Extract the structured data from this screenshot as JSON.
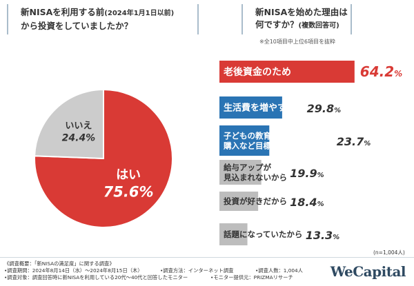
{
  "left_question": {
    "line1": "新NISAを利用する前",
    "line1_small": "(2024年1月1日以前)",
    "line2": "から投資をしていましたか？"
  },
  "right_question": {
    "line1": "新NISAを始めた理由は",
    "line2": "何ですか？",
    "line2_small": "(複数回答可)",
    "note": "※全10項目中上位6項目を抜粋"
  },
  "sample_size": "(n=1,004人)",
  "footer": {
    "survey_title": "《調査概要：「新NISAの満足度」に関する調査》",
    "period": "•調査期間：2024年8月14日（水）〜2024年8月15日（木）",
    "method": "•調査方法：インターネット調査",
    "count": "•調査人数：1,004人",
    "target": "•調査対象：調査回答時に新NISAを利用している20代〜40代と回答したモニター",
    "provider": "•モニター提供元：PRIZMAリサーチ",
    "brand": "WeCapital"
  },
  "chart_data": [
    {
      "type": "pie",
      "slices": [
        {
          "label": "はい",
          "value": 75.6,
          "display": "75.6%",
          "color": "#d93a35"
        },
        {
          "label": "いいえ",
          "value": 24.4,
          "display": "24.4%",
          "color": "#cccccc"
        }
      ]
    },
    {
      "type": "bar",
      "orientation": "horizontal",
      "categories": [
        "老後資金のため",
        "生活費を増やすため",
        "子どもの教育資金・マイホーム購入など目標金額達成のため",
        "給与アップが見込まれないから",
        "投資が好きだから",
        "話題になっていたから"
      ],
      "category_lines": [
        [
          "老後資金のため"
        ],
        [
          "生活費を増やすため"
        ],
        [
          "子どもの教育資金・マイホーム",
          "購入など目標金額達成のため"
        ],
        [
          "給与アップが",
          "見込まれないから"
        ],
        [
          "投資が好きだから"
        ],
        [
          "話題になっていたから"
        ]
      ],
      "values": [
        64.2,
        29.8,
        23.7,
        19.9,
        18.4,
        13.3
      ],
      "display": [
        "64.2%",
        "29.8%",
        "23.7%",
        "19.9%",
        "18.4%",
        "13.3%"
      ],
      "colors": [
        "#d93a35",
        "#2a74b4",
        "#2a74b4",
        "#bdbdbd",
        "#bdbdbd",
        "#bdbdbd"
      ]
    }
  ]
}
